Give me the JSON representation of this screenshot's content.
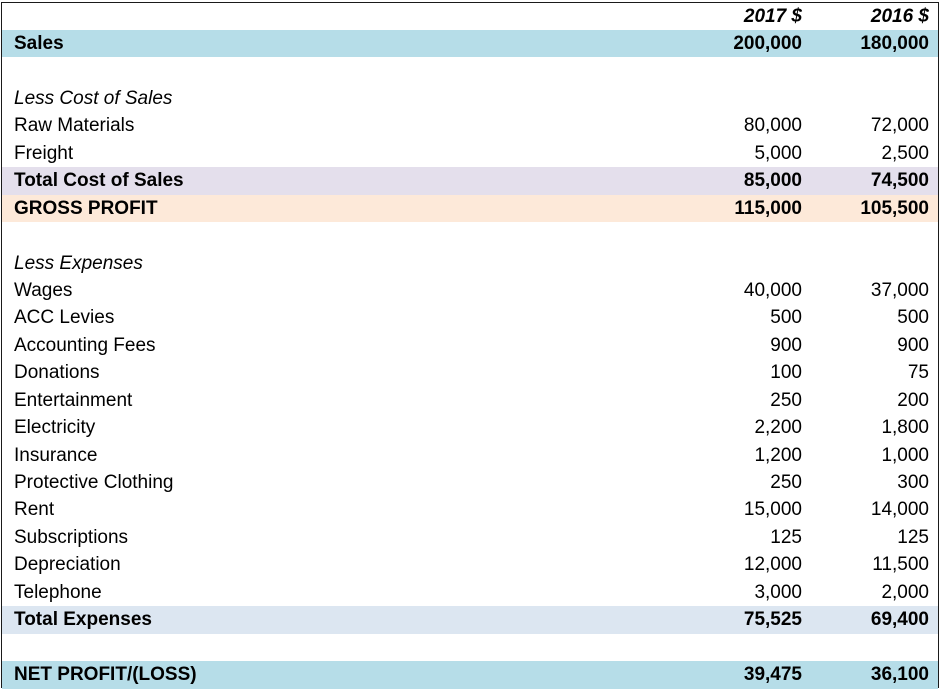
{
  "header": {
    "col1": "2017 $",
    "col2": "2016 $"
  },
  "sales": {
    "label": "Sales",
    "v1": "200,000",
    "v2": "180,000"
  },
  "cost_section": {
    "title": "Less Cost of Sales"
  },
  "cost_items": [
    {
      "label": "Raw Materials",
      "v1": "80,000",
      "v2": "72,000"
    },
    {
      "label": "Freight",
      "v1": "5,000",
      "v2": "2,500"
    }
  ],
  "total_cost": {
    "label": "Total Cost of Sales",
    "v1": "85,000",
    "v2": "74,500"
  },
  "gross_profit": {
    "label": "GROSS PROFIT",
    "v1": "115,000",
    "v2": "105,500"
  },
  "expense_section": {
    "title": "Less Expenses"
  },
  "expense_items": [
    {
      "label": "Wages",
      "v1": "40,000",
      "v2": "37,000"
    },
    {
      "label": "ACC Levies",
      "v1": "500",
      "v2": "500"
    },
    {
      "label": "Accounting Fees",
      "v1": "900",
      "v2": "900"
    },
    {
      "label": "Donations",
      "v1": "100",
      "v2": "75"
    },
    {
      "label": "Entertainment",
      "v1": "250",
      "v2": "200"
    },
    {
      "label": "Electricity",
      "v1": "2,200",
      "v2": "1,800"
    },
    {
      "label": "Insurance",
      "v1": "1,200",
      "v2": "1,000"
    },
    {
      "label": "Protective Clothing",
      "v1": "250",
      "v2": "300"
    },
    {
      "label": "Rent",
      "v1": "15,000",
      "v2": "14,000"
    },
    {
      "label": "Subscriptions",
      "v1": "125",
      "v2": "125"
    },
    {
      "label": "Depreciation",
      "v1": "12,000",
      "v2": "11,500"
    },
    {
      "label": "Telephone",
      "v1": "3,000",
      "v2": "2,000"
    }
  ],
  "total_expenses": {
    "label": "Total Expenses",
    "v1": "75,525",
    "v2": "69,400"
  },
  "net_profit": {
    "label": "NET PROFIT/(LOSS)",
    "v1": "39,475",
    "v2": "36,100"
  },
  "colors": {
    "sales_row": "#b6dde8",
    "total_cost_row": "#e4dfec",
    "gross_profit_row": "#fde9d9",
    "total_expenses_row": "#dce6f1",
    "net_profit_row": "#b6dde8"
  }
}
